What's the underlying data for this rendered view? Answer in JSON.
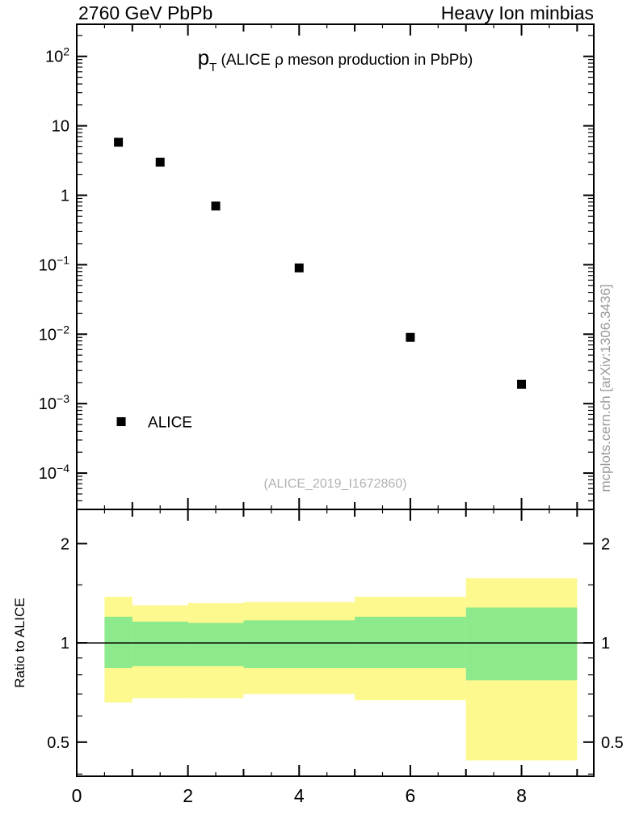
{
  "header": {
    "left": "2760 GeV PbPb",
    "right": "Heavy Ion minbias"
  },
  "watermark": "mcplots.cern.ch [arXiv:1306.3436]",
  "colors": {
    "band_outer": "#fdf98e",
    "band_inner": "#8ce98c",
    "marker": "#000000",
    "annotation_gray": "#b2b2b2",
    "watermark_gray": "#999999"
  },
  "chart_data": [
    {
      "type": "scatter",
      "panel": "main",
      "title": "pT (ALICE ρ meson production in PbPb)",
      "title_parts": {
        "prefix": "p",
        "subscript": "T",
        "rest": " (ALICE ρ meson production in PbPb)"
      },
      "xlim": [
        0,
        9.3
      ],
      "xticks": [
        0,
        2,
        4,
        6,
        8
      ],
      "yscale": "log",
      "ylim": [
        3e-05,
        290
      ],
      "ytick_exponents": [
        2,
        1,
        0,
        -1,
        -2,
        -3,
        -4
      ],
      "series": [
        {
          "name": "ALICE",
          "marker": "filled-square",
          "color": "#000000",
          "x": [
            0.75,
            1.5,
            2.5,
            4,
            6,
            8
          ],
          "y": [
            5.8,
            3.0,
            0.7,
            0.09,
            0.009,
            0.0019
          ]
        }
      ],
      "legend": {
        "label": "ALICE",
        "x": 0.8,
        "y": 0.00055
      },
      "annotation": {
        "text": "(ALICE_2019_I1672860)",
        "color": "#b2b2b2"
      }
    },
    {
      "type": "band",
      "panel": "ratio",
      "ylabel": "Ratio to ALICE",
      "yscale": "log",
      "ylim": [
        0.394,
        2.54
      ],
      "yticks": [
        0.5,
        1,
        2
      ],
      "ytick_labels": [
        "0.5",
        "1",
        "2"
      ],
      "minor_yticks": [
        0.4,
        0.6,
        0.7,
        0.8,
        0.9,
        1.5
      ],
      "refline": 1,
      "xticks": [
        0,
        2,
        4,
        6,
        8
      ],
      "bin_edges": [
        0.5,
        1,
        2,
        3,
        5,
        7,
        9
      ],
      "bands": [
        {
          "name": "yellow",
          "color": "#fdf98e",
          "lo": [
            0.66,
            0.68,
            0.68,
            0.7,
            0.67,
            0.44
          ],
          "hi": [
            1.38,
            1.3,
            1.32,
            1.33,
            1.38,
            1.57
          ]
        },
        {
          "name": "green",
          "color": "#8ce98c",
          "lo": [
            0.84,
            0.85,
            0.85,
            0.84,
            0.84,
            0.77
          ],
          "hi": [
            1.2,
            1.16,
            1.15,
            1.17,
            1.2,
            1.28
          ]
        }
      ]
    }
  ]
}
